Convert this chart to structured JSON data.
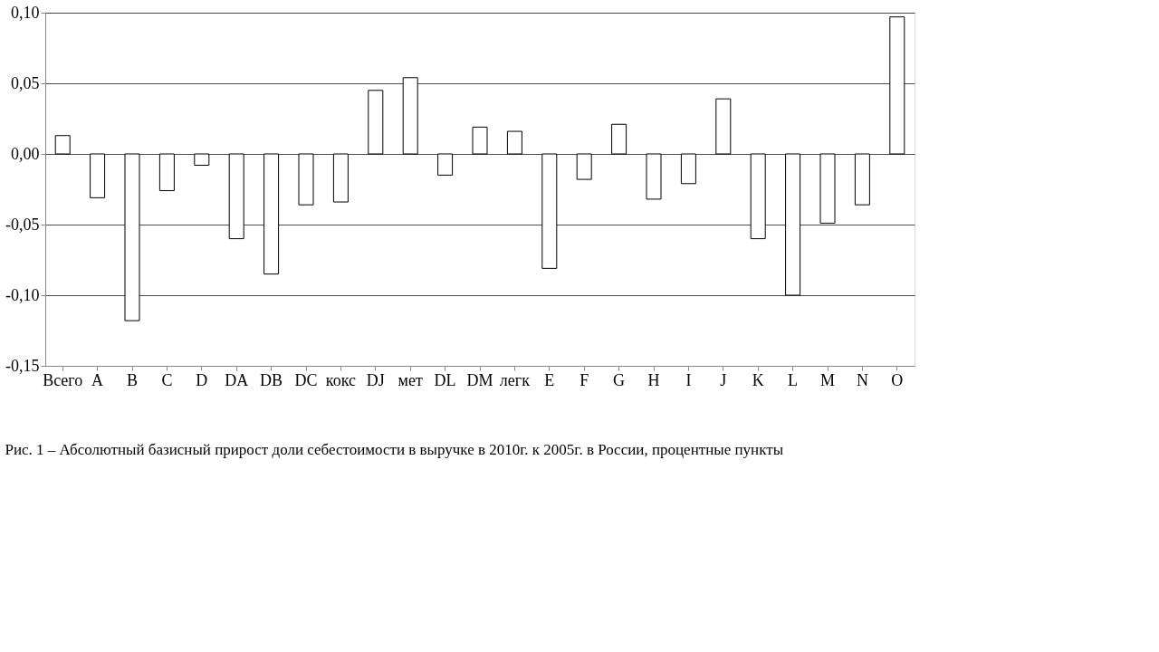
{
  "chart_data": {
    "type": "bar",
    "categories": [
      "Всего",
      "A",
      "B",
      "C",
      "D",
      "DA",
      "DB",
      "DC",
      "кокс",
      "DJ",
      "мет",
      "DL",
      "DM",
      "легк",
      "E",
      "F",
      "G",
      "H",
      "I",
      "J",
      "K",
      "L",
      "M",
      "N",
      "O"
    ],
    "values": [
      0.013,
      -0.031,
      -0.118,
      -0.026,
      -0.008,
      -0.06,
      -0.085,
      -0.036,
      -0.034,
      0.045,
      0.054,
      -0.015,
      0.019,
      0.016,
      -0.081,
      -0.018,
      0.021,
      -0.032,
      -0.021,
      0.039,
      -0.06,
      -0.1,
      -0.049,
      -0.036,
      0.097
    ],
    "color": "#ffffff",
    "ylim": [
      -0.15,
      0.1
    ],
    "yticks": [
      {
        "value": -0.15,
        "label": "-0,15"
      },
      {
        "value": -0.1,
        "label": "-0,10"
      },
      {
        "value": -0.05,
        "label": "-0,05"
      },
      {
        "value": 0.0,
        "label": "0,00"
      },
      {
        "value": 0.05,
        "label": "0,05"
      },
      {
        "value": 0.1,
        "label": "0,10"
      }
    ],
    "grid": "y",
    "legend": false,
    "annotations": [
      "Рис. 1 – Абсолютный базисный прирост доли себестоимости в выручке в 2010г. к 2005г. в России, процентные пункты"
    ]
  }
}
